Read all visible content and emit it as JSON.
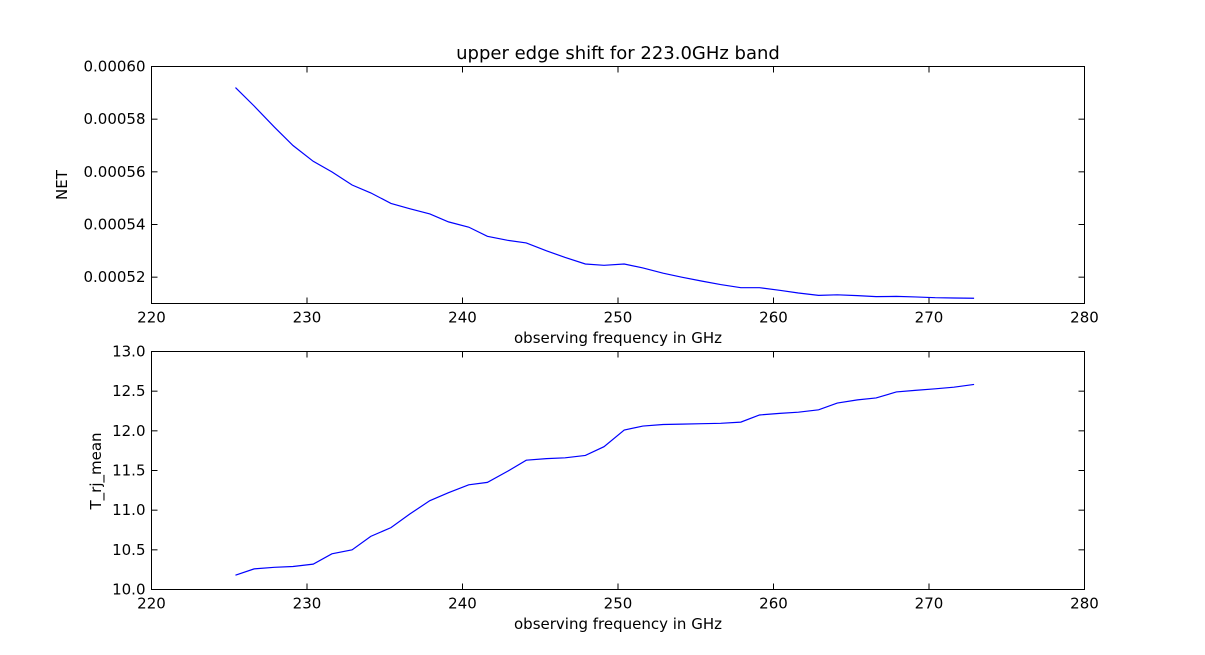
{
  "chart_data": [
    {
      "type": "line",
      "title": "upper edge shift for 223.0GHz band",
      "xlabel": "observing frequency in GHz",
      "ylabel": "NET",
      "xlim": [
        220,
        280
      ],
      "ylim": [
        0.00051,
        0.0006
      ],
      "xticks": [
        220,
        230,
        240,
        250,
        260,
        270,
        280
      ],
      "yticks": [
        0.00052,
        0.00054,
        0.00056,
        0.00058,
        0.0006
      ],
      "ytick_labels": [
        "0.00052",
        "0.00054",
        "0.00056",
        "0.00058",
        "0.00060"
      ],
      "grid": false,
      "color": "#0000ff",
      "x": [
        225.4,
        226.6,
        227.9,
        229.1,
        230.4,
        231.6,
        232.9,
        234.1,
        235.4,
        236.6,
        237.9,
        239.1,
        240.4,
        241.6,
        242.9,
        244.1,
        245.4,
        246.6,
        247.9,
        249.1,
        250.4,
        251.6,
        252.9,
        254.1,
        255.4,
        256.6,
        257.9,
        259.1,
        260.4,
        261.6,
        262.9,
        264.1,
        265.4,
        266.6,
        267.9,
        269.1,
        270.4,
        271.6,
        272.9
      ],
      "y": [
        0.000592,
        0.000585,
        0.000577,
        0.00057,
        0.000564,
        0.00056,
        0.000555,
        0.000552,
        0.000548,
        0.000546,
        0.000544,
        0.000541,
        0.000539,
        0.0005355,
        0.000534,
        0.000533,
        0.00053,
        0.0005275,
        0.000525,
        0.0005245,
        0.000525,
        0.0005235,
        0.0005215,
        0.00052,
        0.0005185,
        0.0005172,
        0.000516,
        0.000516,
        0.000515,
        0.000514,
        0.0005131,
        0.0005133,
        0.000513,
        0.0005126,
        0.0005127,
        0.0005125,
        0.0005122,
        0.0005121,
        0.000512
      ]
    },
    {
      "type": "line",
      "title": "",
      "xlabel": "observing frequency in GHz",
      "ylabel": "T_rj_mean",
      "xlim": [
        220,
        280
      ],
      "ylim": [
        10.0,
        13.0
      ],
      "xticks": [
        220,
        230,
        240,
        250,
        260,
        270,
        280
      ],
      "yticks": [
        10.0,
        10.5,
        11.0,
        11.5,
        12.0,
        12.5,
        13.0
      ],
      "ytick_labels": [
        "10.0",
        "10.5",
        "11.0",
        "11.5",
        "12.0",
        "12.5",
        "13.0"
      ],
      "grid": false,
      "color": "#0000ff",
      "x": [
        225.4,
        226.6,
        227.9,
        229.1,
        230.4,
        231.6,
        232.9,
        234.1,
        235.4,
        236.6,
        237.9,
        239.1,
        240.4,
        241.6,
        242.9,
        244.1,
        245.4,
        246.6,
        247.9,
        249.1,
        250.4,
        251.6,
        252.9,
        254.1,
        255.4,
        256.6,
        257.9,
        259.1,
        260.4,
        261.6,
        262.9,
        264.1,
        265.4,
        266.6,
        267.9,
        269.1,
        270.4,
        271.6,
        272.9
      ],
      "y": [
        10.18,
        10.26,
        10.28,
        10.29,
        10.32,
        10.45,
        10.5,
        10.67,
        10.78,
        10.95,
        11.12,
        11.22,
        11.32,
        11.35,
        11.49,
        11.63,
        11.65,
        11.66,
        11.69,
        11.8,
        12.01,
        12.06,
        12.08,
        12.085,
        12.09,
        12.095,
        12.11,
        12.2,
        12.22,
        12.235,
        12.265,
        12.35,
        12.39,
        12.415,
        12.49,
        12.51,
        12.53,
        12.55,
        12.585
      ]
    }
  ]
}
